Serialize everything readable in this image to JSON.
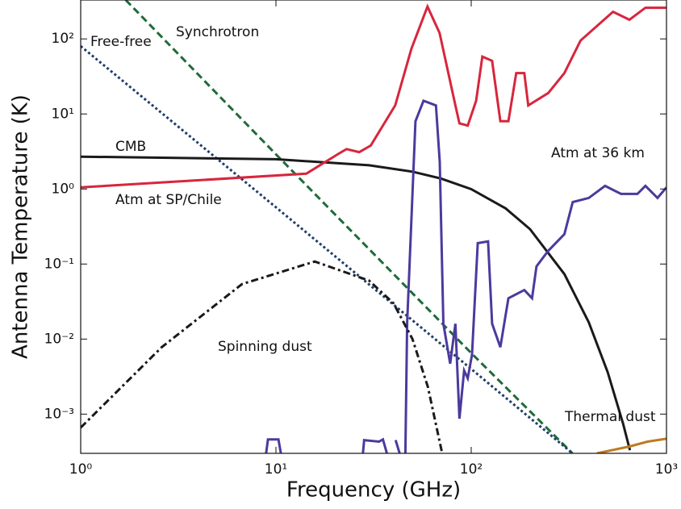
{
  "chart_data": {
    "type": "line",
    "xlabel": "Frequency (GHz)",
    "ylabel": "Antenna Temperature (K)",
    "xscale": "log",
    "yscale": "log",
    "xlim": [
      1,
      1000
    ],
    "ylim": [
      0.0003,
      330
    ],
    "xticks": [
      {
        "value": 1,
        "label": "10⁰"
      },
      {
        "value": 10,
        "label": "10¹"
      },
      {
        "value": 100,
        "label": "10²"
      },
      {
        "value": 1000,
        "label": "10³"
      }
    ],
    "yticks": [
      {
        "value": 0.001,
        "label": "10⁻³"
      },
      {
        "value": 0.01,
        "label": "10⁻²"
      },
      {
        "value": 0.1,
        "label": "10⁻¹"
      },
      {
        "value": 1,
        "label": "10⁰"
      },
      {
        "value": 10,
        "label": "10¹"
      },
      {
        "value": 100,
        "label": "10²"
      }
    ],
    "series": [
      {
        "name": "Synchrotron",
        "color": "#1f6b3a",
        "style": "dashed",
        "x": [
          1.7,
          10,
          100,
          330
        ],
        "values": [
          330,
          2.9,
          0.0065,
          0.0003
        ]
      },
      {
        "name": "Free-free",
        "color": "#1f3f6b",
        "style": "dotted",
        "x": [
          1,
          10,
          100,
          330
        ],
        "values": [
          80,
          0.57,
          0.004,
          0.0003
        ]
      },
      {
        "name": "CMB",
        "color": "#1a1a1a",
        "style": "solid",
        "x": [
          1,
          10,
          30,
          50,
          70,
          100,
          150,
          200,
          300,
          400,
          500,
          600,
          650
        ],
        "values": [
          2.7,
          2.49,
          2.07,
          1.7,
          1.38,
          0.995,
          0.552,
          0.292,
          0.0734,
          0.0167,
          0.0036,
          0.00074,
          0.00033
        ]
      },
      {
        "name": "Atm at SP/Chile",
        "color": "#d7263d",
        "style": "solid",
        "x": [
          1,
          14.3,
          21,
          23,
          26.7,
          30.6,
          40.8,
          49.4,
          59.7,
          68.9,
          83,
          87,
          96,
          106,
          114,
          128,
          141,
          155,
          170,
          187,
          196,
          248,
          300,
          363,
          532,
          646,
          780,
          1000
        ],
        "values": [
          1.05,
          1.6,
          2.96,
          3.4,
          3.1,
          3.8,
          13,
          74,
          270,
          120,
          13,
          7.5,
          7,
          15,
          58,
          51,
          8,
          8,
          35,
          35,
          13,
          19,
          35,
          95,
          230,
          180,
          260,
          260
        ]
      },
      {
        "name": "Atm at 36 km",
        "color": "#4b3a9e",
        "style": "solid",
        "x": [
          8.9,
          9.1,
          10.3,
          10.6,
          20,
          27.9,
          28.3,
          33.7,
          35.3,
          37,
          39,
          41,
          43,
          44,
          46,
          47,
          51.8,
          57,
          66,
          69,
          72,
          78,
          83,
          87,
          92,
          96,
          101,
          108,
          122,
          128,
          141,
          155,
          187,
          205,
          216,
          248,
          300,
          331,
          400,
          485,
          585,
          710,
          780,
          900,
          1000
        ],
        "values": [
          0.0003,
          0.00046,
          0.00046,
          0.0003,
          null,
          0.0003,
          0.00045,
          0.00043,
          0.00046,
          0.0003,
          null,
          0.00045,
          0.0003,
          null,
          0.0003,
          0.0163,
          8,
          15,
          13,
          2.3,
          0.016,
          0.0047,
          0.016,
          0.00087,
          0.0038,
          0.003,
          0.0062,
          0.19,
          0.2,
          0.016,
          0.0078,
          0.035,
          0.045,
          0.035,
          0.093,
          0.15,
          0.25,
          0.67,
          0.76,
          1.1,
          0.86,
          0.86,
          1.1,
          0.76,
          1.05
        ]
      },
      {
        "name": "Spinning dust",
        "color": "#1a1a1a",
        "style": "dashdot",
        "x": [
          1,
          2.6,
          6.7,
          15.8,
          30,
          40,
          50,
          60,
          71
        ],
        "values": [
          0.00066,
          0.0078,
          0.054,
          0.108,
          0.06,
          0.03,
          0.01,
          0.0023,
          0.0003
        ]
      },
      {
        "name": "Thermal dust",
        "color": "#c07a1e",
        "style": "solid",
        "x": [
          440,
          646,
          800,
          1000
        ],
        "values": [
          0.0003,
          0.00037,
          0.00043,
          0.00047
        ]
      }
    ]
  }
}
